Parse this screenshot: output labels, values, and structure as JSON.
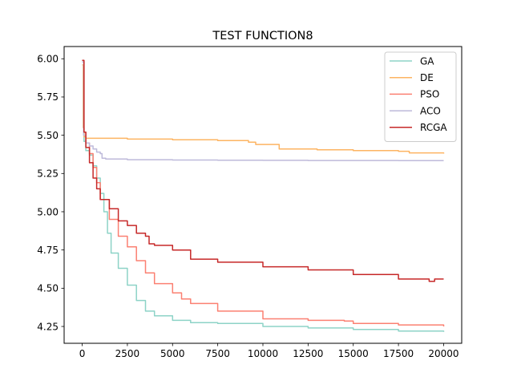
{
  "chart_data": {
    "type": "line",
    "title": "TEST FUNCTION8",
    "xlabel": "",
    "ylabel": "",
    "xlim": [
      -1000,
      21000
    ],
    "ylim": [
      4.14,
      6.08
    ],
    "xticks": [
      0,
      2500,
      5000,
      7500,
      10000,
      12500,
      15000,
      17500,
      20000
    ],
    "xtick_labels": [
      "0",
      "2500",
      "5000",
      "7500",
      "10000",
      "12500",
      "15000",
      "17500",
      "20000"
    ],
    "yticks": [
      4.25,
      4.5,
      4.75,
      5.0,
      5.25,
      5.5,
      5.75,
      6.0
    ],
    "ytick_labels": [
      "4.25",
      "4.50",
      "4.75",
      "5.00",
      "5.25",
      "5.50",
      "5.75",
      "6.00"
    ],
    "grid": false,
    "legend_position": "top-right",
    "series": [
      {
        "name": "GA",
        "color": "#8dd3c7",
        "x": [
          0,
          100,
          200,
          400,
          600,
          800,
          1000,
          1200,
          1400,
          1600,
          2000,
          2500,
          3000,
          3500,
          4000,
          5000,
          6000,
          7500,
          10000,
          12500,
          15000,
          17500,
          20000
        ],
        "y": [
          5.98,
          5.46,
          5.4,
          5.37,
          5.3,
          5.22,
          5.12,
          5.0,
          4.86,
          4.73,
          4.63,
          4.52,
          4.42,
          4.35,
          4.32,
          4.29,
          4.275,
          4.27,
          4.25,
          4.24,
          4.23,
          4.22,
          4.215
        ]
      },
      {
        "name": "DE",
        "color": "#fdb462",
        "x": [
          0,
          50,
          100,
          200,
          2500,
          5000,
          7500,
          9200,
          9600,
          10800,
          10900,
          13000,
          15000,
          17500,
          18100,
          20000
        ],
        "y": [
          5.96,
          5.55,
          5.49,
          5.48,
          5.475,
          5.47,
          5.465,
          5.455,
          5.44,
          5.44,
          5.41,
          5.405,
          5.4,
          5.395,
          5.385,
          5.38
        ]
      },
      {
        "name": "PSO",
        "color": "#fb8072",
        "x": [
          0,
          100,
          200,
          400,
          600,
          800,
          1000,
          1500,
          2000,
          2500,
          3000,
          3500,
          4000,
          5000,
          5500,
          6000,
          7500,
          10000,
          12500,
          14500,
          15000,
          17500,
          20000
        ],
        "y": [
          5.98,
          5.52,
          5.45,
          5.38,
          5.29,
          5.19,
          5.08,
          4.95,
          4.84,
          4.77,
          4.68,
          4.6,
          4.53,
          4.47,
          4.43,
          4.4,
          4.35,
          4.3,
          4.29,
          4.285,
          4.27,
          4.26,
          4.25
        ]
      },
      {
        "name": "ACO",
        "color": "#bebada",
        "x": [
          0,
          80,
          200,
          400,
          600,
          800,
          1000,
          1100,
          1300,
          2500,
          5000,
          7500,
          10000,
          12500,
          15000,
          17500,
          20000
        ],
        "y": [
          5.98,
          5.5,
          5.45,
          5.43,
          5.41,
          5.39,
          5.38,
          5.35,
          5.345,
          5.34,
          5.338,
          5.337,
          5.336,
          5.335,
          5.335,
          5.334,
          5.334
        ]
      },
      {
        "name": "RCGA",
        "color": "#c62828",
        "x": [
          0,
          100,
          200,
          400,
          600,
          800,
          1000,
          1500,
          2000,
          2500,
          3000,
          3500,
          3700,
          4000,
          5000,
          6000,
          7500,
          10000,
          12500,
          15000,
          17500,
          19200,
          19500,
          20000
        ],
        "y": [
          5.99,
          5.52,
          5.42,
          5.32,
          5.22,
          5.15,
          5.08,
          5.02,
          4.94,
          4.91,
          4.86,
          4.84,
          4.79,
          4.78,
          4.75,
          4.69,
          4.67,
          4.64,
          4.62,
          4.59,
          4.56,
          4.545,
          4.56,
          4.56
        ]
      }
    ]
  }
}
